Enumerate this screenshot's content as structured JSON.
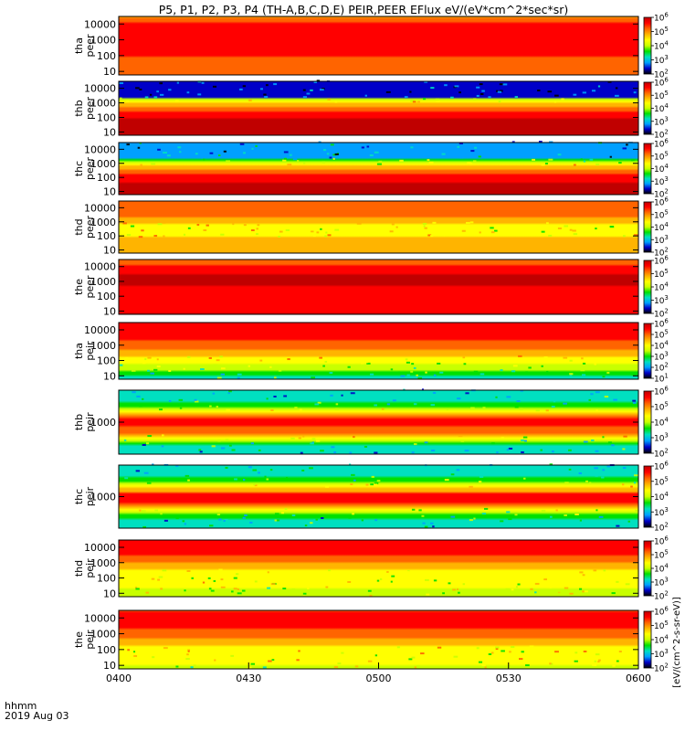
{
  "chart_data": {
    "type": "heatmap",
    "title": "P5, P1, P2, P3, P4 (TH-A,B,C,D,E) PEIR,PEER EFlux eV/(eV*cm^2*sec*sr)",
    "x_ticks": [
      "0400",
      "0430",
      "0500",
      "0530",
      "0600"
    ],
    "x_axis_label": "hhmm",
    "date_label": "2019 Aug 03",
    "x_range": [
      "04:00",
      "06:00"
    ],
    "y_scale": "log",
    "colorbar_scale": "log",
    "colorbar_label": "[eV/(cm^2-s-sr-eV)]",
    "colormap": [
      "#000000",
      "#0000c8",
      "#00a0ff",
      "#00e0c0",
      "#00e000",
      "#c8ff00",
      "#ffff00",
      "#ffb400",
      "#ff6400",
      "#ff0000",
      "#c00000"
    ],
    "panels": [
      {
        "name": "tha_peer",
        "label_lines": [
          "tha",
          "peer"
        ],
        "y_ticks": [
          "10",
          "100",
          "1000",
          "10000"
        ],
        "y_range": [
          6,
          30000
        ],
        "colorbar_range": [
          100,
          1000000
        ],
        "colorbar_ticks": [
          "10^2",
          "10^3",
          "10^4",
          "10^5",
          "10^6"
        ],
        "profile": [
          [
            6,
            8
          ],
          [
            10,
            7.4
          ],
          [
            30,
            8.2
          ],
          [
            100,
            8.5
          ],
          [
            300,
            9
          ],
          [
            1000,
            9.3
          ],
          [
            3000,
            9.2
          ],
          [
            10000,
            8.7
          ],
          [
            20000,
            7.8
          ],
          [
            30000,
            7
          ]
        ]
      },
      {
        "name": "thb_peer",
        "label_lines": [
          "thb",
          "peer"
        ],
        "y_ticks": [
          "10",
          "100",
          "1000",
          "10000"
        ],
        "y_range": [
          6,
          30000
        ],
        "colorbar_range": [
          100,
          1000000
        ],
        "colorbar_ticks": [
          "10^2",
          "10^3",
          "10^4",
          "10^5",
          "10^6"
        ],
        "profile": [
          [
            6,
            9.5
          ],
          [
            10,
            9.6
          ],
          [
            30,
            9.7
          ],
          [
            100,
            9.5
          ],
          [
            200,
            9
          ],
          [
            500,
            7.5
          ],
          [
            1000,
            6.5
          ],
          [
            1800,
            5
          ],
          [
            2500,
            1
          ],
          [
            30000,
            1
          ]
        ]
      },
      {
        "name": "thc_peer",
        "label_lines": [
          "thc",
          "peer"
        ],
        "y_ticks": [
          "10",
          "100",
          "1000",
          "10000"
        ],
        "y_range": [
          6,
          30000
        ],
        "colorbar_range": [
          100,
          1000000
        ],
        "colorbar_ticks": [
          "10^2",
          "10^3",
          "10^4",
          "10^5",
          "10^6"
        ],
        "profile": [
          [
            6,
            9.8
          ],
          [
            10,
            9.7
          ],
          [
            30,
            9.6
          ],
          [
            80,
            9.3
          ],
          [
            200,
            8.5
          ],
          [
            500,
            7
          ],
          [
            1000,
            5.5
          ],
          [
            1800,
            4
          ],
          [
            2500,
            2
          ],
          [
            30000,
            2
          ]
        ]
      },
      {
        "name": "thd_peer",
        "label_lines": [
          "thd",
          "peer"
        ],
        "y_ticks": [
          "10",
          "100",
          "1000",
          "10000"
        ],
        "y_range": [
          6,
          30000
        ],
        "colorbar_range": [
          100,
          1000000
        ],
        "colorbar_ticks": [
          "10^2",
          "10^3",
          "10^4",
          "10^5",
          "10^6"
        ],
        "profile": [
          [
            6,
            6.8
          ],
          [
            10,
            7
          ],
          [
            50,
            6.6
          ],
          [
            150,
            6.3
          ],
          [
            300,
            5.5
          ],
          [
            600,
            6.2
          ],
          [
            2000,
            7.5
          ],
          [
            6000,
            8.5
          ],
          [
            15000,
            8.2
          ],
          [
            30000,
            7.5
          ]
        ]
      },
      {
        "name": "the_peer",
        "label_lines": [
          "the",
          "peer"
        ],
        "y_ticks": [
          "10",
          "100",
          "1000",
          "10000"
        ],
        "y_range": [
          6,
          30000
        ],
        "colorbar_range": [
          100,
          1000000
        ],
        "colorbar_ticks": [
          "10^2",
          "10^3",
          "10^4",
          "10^5",
          "10^6"
        ],
        "profile": [
          [
            6,
            9.5
          ],
          [
            10,
            9.3
          ],
          [
            30,
            8.5
          ],
          [
            100,
            8.8
          ],
          [
            300,
            9.4
          ],
          [
            1000,
            9.6
          ],
          [
            3000,
            9.5
          ],
          [
            10000,
            8.8
          ],
          [
            30000,
            7.5
          ]
        ]
      },
      {
        "name": "tha_peir",
        "label_lines": [
          "tha",
          "peir"
        ],
        "y_ticks": [
          "10",
          "100",
          "1000",
          "10000"
        ],
        "y_range": [
          6,
          30000
        ],
        "colorbar_range": [
          10,
          1000000
        ],
        "colorbar_ticks": [
          "10^1",
          "10^2",
          "10^3",
          "10^4",
          "10^5",
          "10^6"
        ],
        "profile": [
          [
            6,
            3
          ],
          [
            10,
            3.5
          ],
          [
            20,
            4.5
          ],
          [
            50,
            5.2
          ],
          [
            100,
            6
          ],
          [
            300,
            7
          ],
          [
            1000,
            8
          ],
          [
            3000,
            8.8
          ],
          [
            10000,
            9
          ],
          [
            20000,
            8.8
          ],
          [
            30000,
            8.5
          ]
        ]
      },
      {
        "name": "thb_peir",
        "label_lines": [
          "thb",
          "peir"
        ],
        "y_ticks": [
          "1000"
        ],
        "y_range": [
          200,
          5000
        ],
        "colorbar_range": [
          100,
          1000000
        ],
        "colorbar_ticks": [
          "10^2",
          "10^3",
          "10^4",
          "10^5",
          "10^6"
        ],
        "profile": [
          [
            200,
            2.5
          ],
          [
            300,
            3
          ],
          [
            420,
            5
          ],
          [
            550,
            7.5
          ],
          [
            700,
            8
          ],
          [
            900,
            9.3
          ],
          [
            1100,
            9.3
          ],
          [
            1400,
            7.5
          ],
          [
            1700,
            6.5
          ],
          [
            2200,
            4
          ],
          [
            3000,
            3
          ],
          [
            5000,
            2.5
          ]
        ]
      },
      {
        "name": "thc_peir",
        "label_lines": [
          "thc",
          "peir"
        ],
        "y_ticks": [
          "1000"
        ],
        "y_range": [
          200,
          5000
        ],
        "colorbar_range": [
          100,
          1000000
        ],
        "colorbar_ticks": [
          "10^2",
          "10^3",
          "10^4",
          "10^5",
          "10^6"
        ],
        "profile": [
          [
            200,
            2.5
          ],
          [
            300,
            3
          ],
          [
            420,
            4.5
          ],
          [
            550,
            7
          ],
          [
            700,
            8.2
          ],
          [
            850,
            9.4
          ],
          [
            1050,
            9.4
          ],
          [
            1300,
            7.5
          ],
          [
            1700,
            6
          ],
          [
            2200,
            4
          ],
          [
            3000,
            3
          ],
          [
            5000,
            2.5
          ]
        ]
      },
      {
        "name": "thd_peir",
        "label_lines": [
          "thd",
          "peir"
        ],
        "y_ticks": [
          "10",
          "100",
          "1000",
          "10000"
        ],
        "y_range": [
          6,
          30000
        ],
        "colorbar_range": [
          100,
          1000000
        ],
        "colorbar_ticks": [
          "10^2",
          "10^3",
          "10^4",
          "10^5",
          "10^6"
        ],
        "profile": [
          [
            6,
            5
          ],
          [
            10,
            5.3
          ],
          [
            30,
            5.6
          ],
          [
            100,
            5.8
          ],
          [
            300,
            6.5
          ],
          [
            1000,
            7.5
          ],
          [
            3000,
            8.5
          ],
          [
            10000,
            9.2
          ],
          [
            20000,
            9
          ],
          [
            30000,
            8.5
          ]
        ]
      },
      {
        "name": "the_peir",
        "label_lines": [
          "the",
          "peir"
        ],
        "y_ticks": [
          "10",
          "100",
          "1000",
          "10000"
        ],
        "y_range": [
          6,
          30000
        ],
        "colorbar_range": [
          100,
          1000000
        ],
        "colorbar_ticks": [
          "10^2",
          "10^3",
          "10^4",
          "10^5",
          "10^6"
        ],
        "profile": [
          [
            6,
            5.2
          ],
          [
            10,
            5.5
          ],
          [
            30,
            5.8
          ],
          [
            100,
            6.2
          ],
          [
            300,
            7
          ],
          [
            1000,
            8
          ],
          [
            3000,
            8.8
          ],
          [
            10000,
            9
          ],
          [
            20000,
            8.8
          ],
          [
            30000,
            8.2
          ]
        ]
      }
    ]
  }
}
